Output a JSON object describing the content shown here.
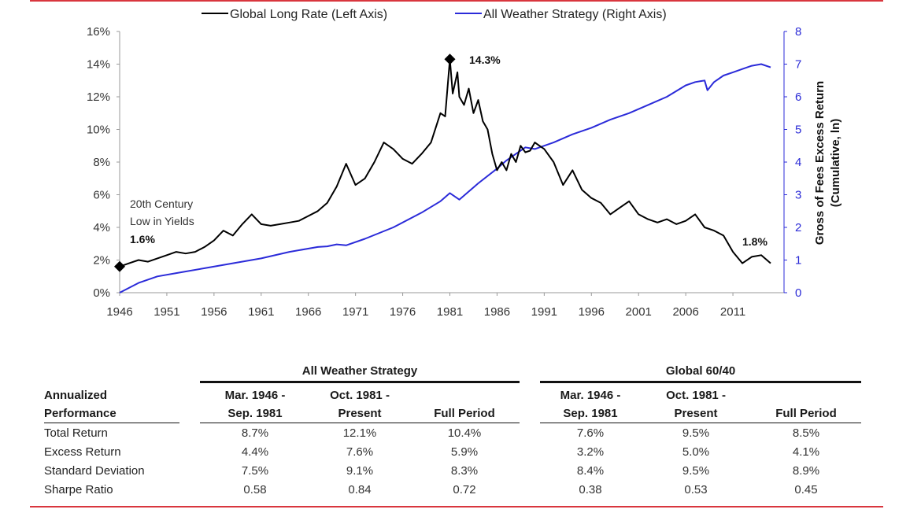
{
  "chart_data": {
    "type": "line",
    "legend": [
      "Global Long Rate (Left Axis)",
      "All Weather Strategy (Right Axis)"
    ],
    "legend_placement": "top",
    "ylabel_right": [
      "Gross of Fees Excess Return",
      "(Cumulative, ln)"
    ],
    "x_ticks": [
      "1946",
      "1951",
      "1956",
      "1961",
      "1966",
      "1971",
      "1976",
      "1981",
      "1986",
      "1991",
      "1996",
      "2001",
      "2006",
      "2011"
    ],
    "y_left_ticks": [
      "0%",
      "2%",
      "4%",
      "6%",
      "8%",
      "10%",
      "12%",
      "14%",
      "16%"
    ],
    "y_right_ticks": [
      "0",
      "1",
      "2",
      "3",
      "4",
      "5",
      "6",
      "7",
      "8"
    ],
    "xlim": [
      1946,
      2015.5
    ],
    "ylim_left": [
      0,
      16
    ],
    "ylim_right": [
      0,
      8
    ],
    "grid": false,
    "colors": {
      "rate": "#000000",
      "all_weather": "#2b2bd9",
      "rule": "#d9363e"
    },
    "series": [
      {
        "name": "Global Long Rate (Left Axis)",
        "axis": "left",
        "x": [
          1946,
          1947,
          1948,
          1949,
          1950,
          1951,
          1952,
          1953,
          1954,
          1955,
          1956,
          1957,
          1958,
          1959,
          1960,
          1961,
          1962,
          1963,
          1964,
          1965,
          1966,
          1967,
          1968,
          1969,
          1970,
          1971,
          1972,
          1973,
          1974,
          1975,
          1976,
          1977,
          1978,
          1979,
          1980,
          1980.5,
          1981,
          1981.3,
          1981.8,
          1982,
          1982.5,
          1983,
          1983.5,
          1984,
          1984.5,
          1985,
          1985.5,
          1986,
          1986.5,
          1987,
          1987.5,
          1988,
          1988.5,
          1989,
          1989.5,
          1990,
          1990.5,
          1991,
          1992,
          1993,
          1994,
          1995,
          1996,
          1997,
          1998,
          1999,
          2000,
          2001,
          2002,
          2003,
          2004,
          2005,
          2006,
          2007,
          2008,
          2009,
          2010,
          2011,
          2012,
          2013,
          2014,
          2015
        ],
        "y": [
          1.6,
          1.8,
          2.0,
          1.9,
          2.1,
          2.3,
          2.5,
          2.4,
          2.5,
          2.8,
          3.2,
          3.8,
          3.5,
          4.2,
          4.8,
          4.2,
          4.1,
          4.2,
          4.3,
          4.4,
          4.7,
          5.0,
          5.5,
          6.5,
          7.9,
          6.6,
          7.0,
          8.0,
          9.2,
          8.8,
          8.2,
          7.9,
          8.5,
          9.2,
          11.0,
          10.8,
          14.3,
          12.2,
          13.5,
          12.0,
          11.5,
          12.5,
          11.0,
          11.8,
          10.5,
          10.0,
          8.5,
          7.5,
          8.0,
          7.5,
          8.5,
          8.0,
          9.0,
          8.6,
          8.7,
          9.2,
          9.0,
          8.8,
          8.0,
          6.6,
          7.5,
          6.3,
          5.8,
          5.5,
          4.8,
          5.2,
          5.6,
          4.8,
          4.5,
          4.3,
          4.5,
          4.2,
          4.4,
          4.8,
          4.0,
          3.8,
          3.5,
          2.5,
          1.8,
          2.2,
          2.3,
          1.8
        ]
      },
      {
        "name": "All Weather Strategy (Right Axis)",
        "axis": "right",
        "x": [
          1946,
          1948,
          1950,
          1952,
          1955,
          1958,
          1961,
          1964,
          1967,
          1968,
          1969,
          1970,
          1972,
          1975,
          1978,
          1980,
          1981,
          1982,
          1984,
          1986,
          1987,
          1988,
          1989,
          1990,
          1992,
          1994,
          1996,
          1998,
          2000,
          2002,
          2004,
          2006,
          2007,
          2008,
          2008.3,
          2009,
          2010,
          2011,
          2012,
          2013,
          2014,
          2015
        ],
        "y": [
          0.0,
          0.3,
          0.5,
          0.6,
          0.75,
          0.9,
          1.05,
          1.25,
          1.4,
          1.42,
          1.48,
          1.45,
          1.65,
          2.0,
          2.45,
          2.8,
          3.05,
          2.85,
          3.35,
          3.8,
          4.05,
          4.25,
          4.45,
          4.4,
          4.6,
          4.85,
          5.05,
          5.3,
          5.5,
          5.75,
          6.0,
          6.35,
          6.45,
          6.5,
          6.2,
          6.45,
          6.65,
          6.75,
          6.85,
          6.95,
          7.0,
          6.9
        ]
      }
    ],
    "annotations": {
      "peak_label": "14.3%",
      "low_label_line1": "20th Century",
      "low_label_line2": "Low in Yields",
      "low_value": "1.6%",
      "end_label": "1.8%"
    }
  },
  "table": {
    "row_header_line1": "Annualized",
    "row_header_line2": "Performance",
    "groups": [
      "All Weather Strategy",
      "Global 60/40"
    ],
    "columns": [
      {
        "line1": "Mar. 1946 -",
        "line2": "Sep. 1981"
      },
      {
        "line1": "Oct. 1981 -",
        "line2": "Present"
      },
      {
        "line1": "",
        "line2": "Full Period"
      },
      {
        "line1": "Mar. 1946 -",
        "line2": "Sep. 1981"
      },
      {
        "line1": "Oct. 1981 -",
        "line2": "Present"
      },
      {
        "line1": "",
        "line2": "Full Period"
      }
    ],
    "rows": [
      {
        "label": "Total Return",
        "values": [
          "8.7%",
          "12.1%",
          "10.4%",
          "7.6%",
          "9.5%",
          "8.5%"
        ]
      },
      {
        "label": "Excess Return",
        "values": [
          "4.4%",
          "7.6%",
          "5.9%",
          "3.2%",
          "5.0%",
          "4.1%"
        ]
      },
      {
        "label": "Standard Deviation",
        "values": [
          "7.5%",
          "9.1%",
          "8.3%",
          "8.4%",
          "9.5%",
          "8.9%"
        ]
      },
      {
        "label": "Sharpe Ratio",
        "values": [
          "0.58",
          "0.84",
          "0.72",
          "0.38",
          "0.53",
          "0.45"
        ]
      }
    ]
  }
}
